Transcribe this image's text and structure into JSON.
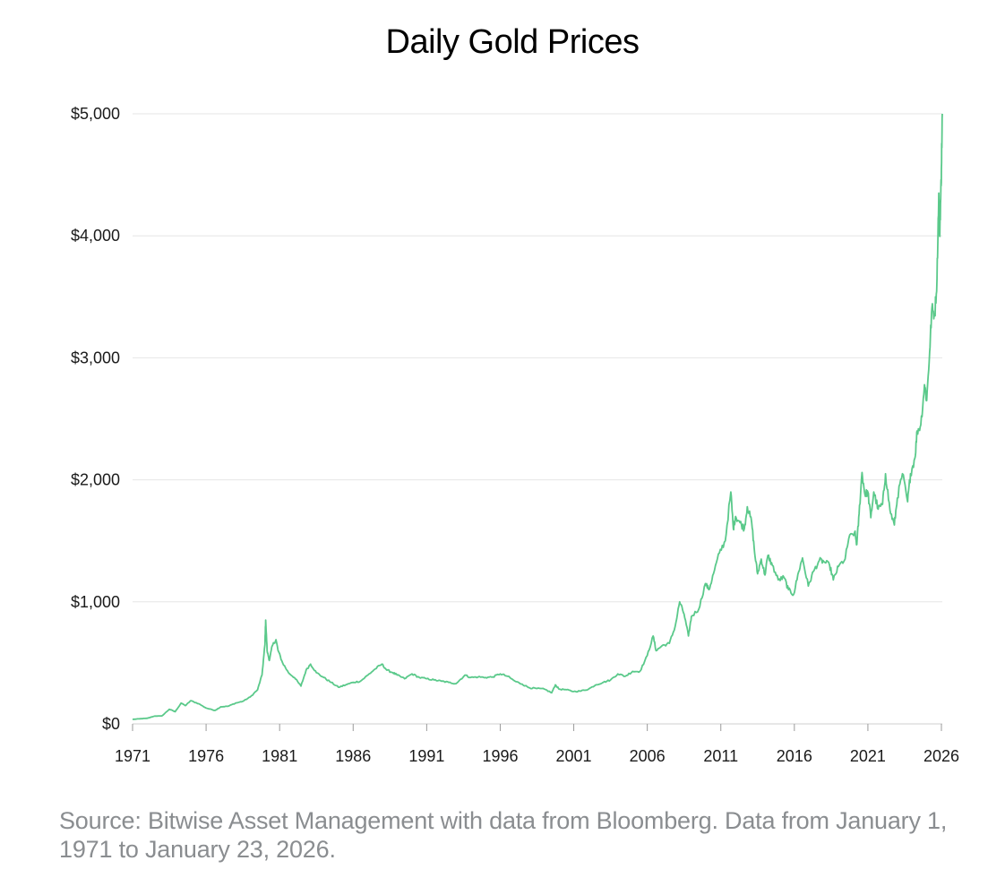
{
  "chart_data": {
    "type": "line",
    "title": "Daily Gold Prices",
    "xlabel": "",
    "ylabel": "",
    "xlim": [
      1971,
      2026.06
    ],
    "ylim": [
      0,
      5000
    ],
    "grid": true,
    "legend": "none",
    "x_ticks": [
      "1971",
      "1976",
      "1981",
      "1986",
      "1991",
      "1996",
      "2001",
      "2006",
      "2011",
      "2016",
      "2021",
      "2026"
    ],
    "y_ticks": [
      {
        "value": 0,
        "label": "$0"
      },
      {
        "value": 1000,
        "label": "$1,000"
      },
      {
        "value": 2000,
        "label": "$2,000"
      },
      {
        "value": 3000,
        "label": "$3,000"
      },
      {
        "value": 4000,
        "label": "$4,000"
      },
      {
        "value": 5000,
        "label": "$5,000"
      }
    ],
    "series": [
      {
        "color": "#5ac98a",
        "points": [
          [
            1971.0,
            37
          ],
          [
            1971.5,
            42
          ],
          [
            1972.0,
            46
          ],
          [
            1972.5,
            64
          ],
          [
            1973.0,
            65
          ],
          [
            1973.5,
            120
          ],
          [
            1973.9,
            100
          ],
          [
            1974.3,
            170
          ],
          [
            1974.6,
            150
          ],
          [
            1974.95,
            190
          ],
          [
            1975.5,
            165
          ],
          [
            1976.0,
            130
          ],
          [
            1976.6,
            110
          ],
          [
            1977.0,
            140
          ],
          [
            1977.5,
            145
          ],
          [
            1978.0,
            170
          ],
          [
            1978.5,
            185
          ],
          [
            1979.0,
            220
          ],
          [
            1979.5,
            280
          ],
          [
            1979.8,
            400
          ],
          [
            1980.0,
            650
          ],
          [
            1980.05,
            850
          ],
          [
            1980.15,
            600
          ],
          [
            1980.3,
            520
          ],
          [
            1980.5,
            640
          ],
          [
            1980.75,
            690
          ],
          [
            1980.9,
            600
          ],
          [
            1981.2,
            500
          ],
          [
            1981.6,
            420
          ],
          [
            1982.0,
            380
          ],
          [
            1982.45,
            310
          ],
          [
            1982.8,
            440
          ],
          [
            1983.1,
            490
          ],
          [
            1983.5,
            420
          ],
          [
            1984.0,
            380
          ],
          [
            1984.5,
            340
          ],
          [
            1985.0,
            300
          ],
          [
            1985.5,
            320
          ],
          [
            1986.0,
            340
          ],
          [
            1986.5,
            350
          ],
          [
            1987.0,
            400
          ],
          [
            1987.5,
            450
          ],
          [
            1987.95,
            490
          ],
          [
            1988.3,
            440
          ],
          [
            1988.7,
            420
          ],
          [
            1989.0,
            400
          ],
          [
            1989.5,
            370
          ],
          [
            1990.0,
            410
          ],
          [
            1990.5,
            380
          ],
          [
            1991.0,
            370
          ],
          [
            1991.5,
            360
          ],
          [
            1992.0,
            350
          ],
          [
            1992.5,
            340
          ],
          [
            1993.0,
            330
          ],
          [
            1993.6,
            400
          ],
          [
            1994.0,
            380
          ],
          [
            1994.5,
            385
          ],
          [
            1995.0,
            380
          ],
          [
            1995.5,
            385
          ],
          [
            1996.0,
            410
          ],
          [
            1996.5,
            390
          ],
          [
            1997.0,
            350
          ],
          [
            1997.5,
            325
          ],
          [
            1998.0,
            295
          ],
          [
            1998.5,
            290
          ],
          [
            1999.0,
            285
          ],
          [
            1999.5,
            255
          ],
          [
            1999.75,
            320
          ],
          [
            2000.0,
            285
          ],
          [
            2000.5,
            280
          ],
          [
            2001.0,
            265
          ],
          [
            2001.5,
            270
          ],
          [
            2002.0,
            285
          ],
          [
            2002.5,
            320
          ],
          [
            2003.0,
            340
          ],
          [
            2003.5,
            360
          ],
          [
            2004.0,
            410
          ],
          [
            2004.5,
            390
          ],
          [
            2005.0,
            430
          ],
          [
            2005.5,
            430
          ],
          [
            2006.0,
            560
          ],
          [
            2006.4,
            720
          ],
          [
            2006.6,
            600
          ],
          [
            2007.0,
            640
          ],
          [
            2007.5,
            660
          ],
          [
            2007.9,
            800
          ],
          [
            2008.2,
            1000
          ],
          [
            2008.5,
            900
          ],
          [
            2008.8,
            720
          ],
          [
            2009.0,
            880
          ],
          [
            2009.5,
            940
          ],
          [
            2009.95,
            1150
          ],
          [
            2010.2,
            1100
          ],
          [
            2010.5,
            1230
          ],
          [
            2010.9,
            1400
          ],
          [
            2011.3,
            1500
          ],
          [
            2011.68,
            1900
          ],
          [
            2011.85,
            1600
          ],
          [
            2012.0,
            1700
          ],
          [
            2012.3,
            1650
          ],
          [
            2012.6,
            1600
          ],
          [
            2012.8,
            1780
          ],
          [
            2013.1,
            1650
          ],
          [
            2013.3,
            1400
          ],
          [
            2013.5,
            1230
          ],
          [
            2013.75,
            1350
          ],
          [
            2014.0,
            1220
          ],
          [
            2014.2,
            1380
          ],
          [
            2014.5,
            1300
          ],
          [
            2014.9,
            1180
          ],
          [
            2015.3,
            1200
          ],
          [
            2015.6,
            1100
          ],
          [
            2015.95,
            1060
          ],
          [
            2016.3,
            1250
          ],
          [
            2016.55,
            1360
          ],
          [
            2016.95,
            1130
          ],
          [
            2017.3,
            1250
          ],
          [
            2017.7,
            1340
          ],
          [
            2018.0,
            1330
          ],
          [
            2018.4,
            1300
          ],
          [
            2018.65,
            1180
          ],
          [
            2019.0,
            1290
          ],
          [
            2019.45,
            1350
          ],
          [
            2019.7,
            1520
          ],
          [
            2020.1,
            1570
          ],
          [
            2020.25,
            1470
          ],
          [
            2020.4,
            1720
          ],
          [
            2020.6,
            2060
          ],
          [
            2020.8,
            1880
          ],
          [
            2021.0,
            1900
          ],
          [
            2021.2,
            1690
          ],
          [
            2021.4,
            1900
          ],
          [
            2021.7,
            1760
          ],
          [
            2022.0,
            1800
          ],
          [
            2022.2,
            2050
          ],
          [
            2022.5,
            1750
          ],
          [
            2022.8,
            1630
          ],
          [
            2023.0,
            1850
          ],
          [
            2023.35,
            2050
          ],
          [
            2023.7,
            1820
          ],
          [
            2023.9,
            2050
          ],
          [
            2024.2,
            2180
          ],
          [
            2024.35,
            2400
          ],
          [
            2024.6,
            2450
          ],
          [
            2024.85,
            2780
          ],
          [
            2025.0,
            2650
          ],
          [
            2025.2,
            3050
          ],
          [
            2025.35,
            3400
          ],
          [
            2025.55,
            3350
          ],
          [
            2025.7,
            3650
          ],
          [
            2025.82,
            4350
          ],
          [
            2025.88,
            4000
          ],
          [
            2025.95,
            4300
          ],
          [
            2026.0,
            4550
          ],
          [
            2026.06,
            5000
          ]
        ]
      }
    ]
  },
  "source_note": "Source: Bitwise Asset Management with data from Bloomberg. Data from January 1, 1971 to January 23, 2026."
}
